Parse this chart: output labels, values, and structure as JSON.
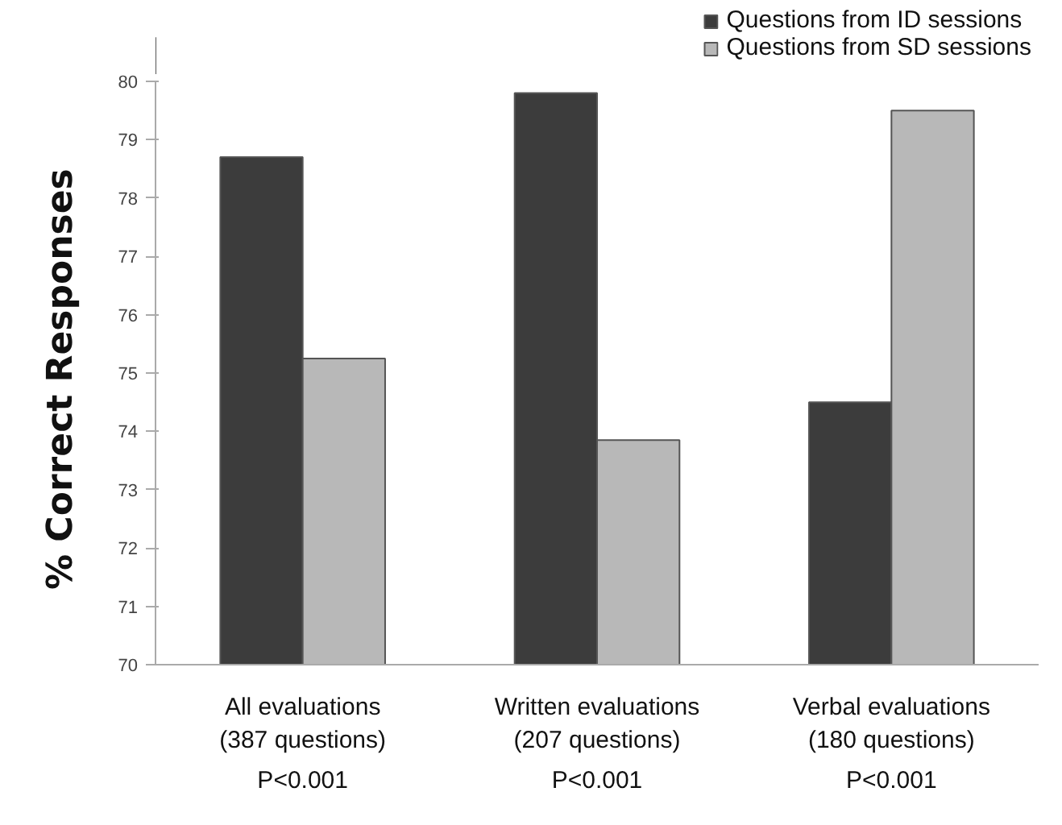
{
  "chart_data": {
    "type": "bar",
    "ylabel": "% Correct  Responses",
    "categories": [
      "All evaluations\n(387 questions)",
      "Written evaluations\n(207 questions)",
      "Verbal evaluations\n(180 questions)"
    ],
    "series": [
      {
        "name": "Questions from ID sessions",
        "color": "#3c3c3c",
        "values": [
          78.7,
          79.8,
          74.5
        ]
      },
      {
        "name": "Questions from SD sessions",
        "color": "#b8b8b8",
        "values": [
          75.25,
          73.85,
          79.5
        ]
      }
    ],
    "ylim": [
      70,
      80
    ],
    "yticks": [
      70,
      71,
      72,
      73,
      74,
      75,
      76,
      77,
      78,
      79,
      80
    ],
    "grid": false,
    "legend": "top right",
    "annotations": [
      "P<0.001",
      "P<0.001",
      "P<0.001"
    ]
  }
}
